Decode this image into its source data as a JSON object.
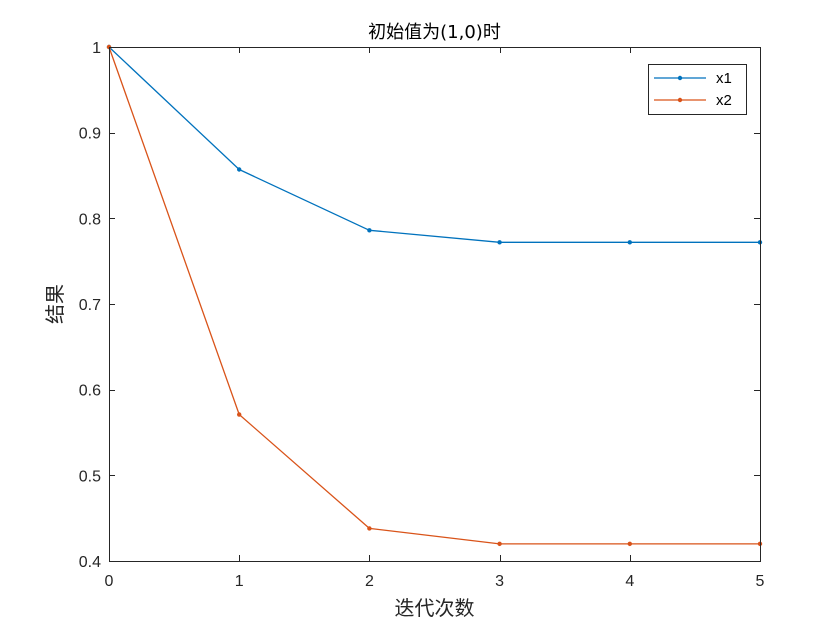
{
  "chart_data": {
    "type": "line",
    "title": "初始值为(1,0)时",
    "xlabel": "迭代次数",
    "ylabel": "结果",
    "xlim": [
      0,
      5
    ],
    "ylim": [
      0.4,
      1
    ],
    "xticks": [
      0,
      1,
      2,
      3,
      4,
      5
    ],
    "yticks": [
      0.4,
      0.5,
      0.6,
      0.7,
      0.8,
      0.9,
      1
    ],
    "xtick_labels": [
      "0",
      "1",
      "2",
      "3",
      "4",
      "5"
    ],
    "ytick_labels": [
      "0.4",
      "0.5",
      "0.6",
      "0.7",
      "0.8",
      "0.9",
      "1"
    ],
    "grid": false,
    "legend_position": "top-right",
    "x": [
      0,
      1,
      2,
      3,
      4,
      5
    ],
    "series": [
      {
        "name": "x1",
        "color": "#0072BD",
        "values": [
          1.0,
          0.857,
          0.786,
          0.772,
          0.772,
          0.772
        ]
      },
      {
        "name": "x2",
        "color": "#D95319",
        "values": [
          1.0,
          0.571,
          0.438,
          0.42,
          0.42,
          0.42
        ]
      }
    ]
  }
}
